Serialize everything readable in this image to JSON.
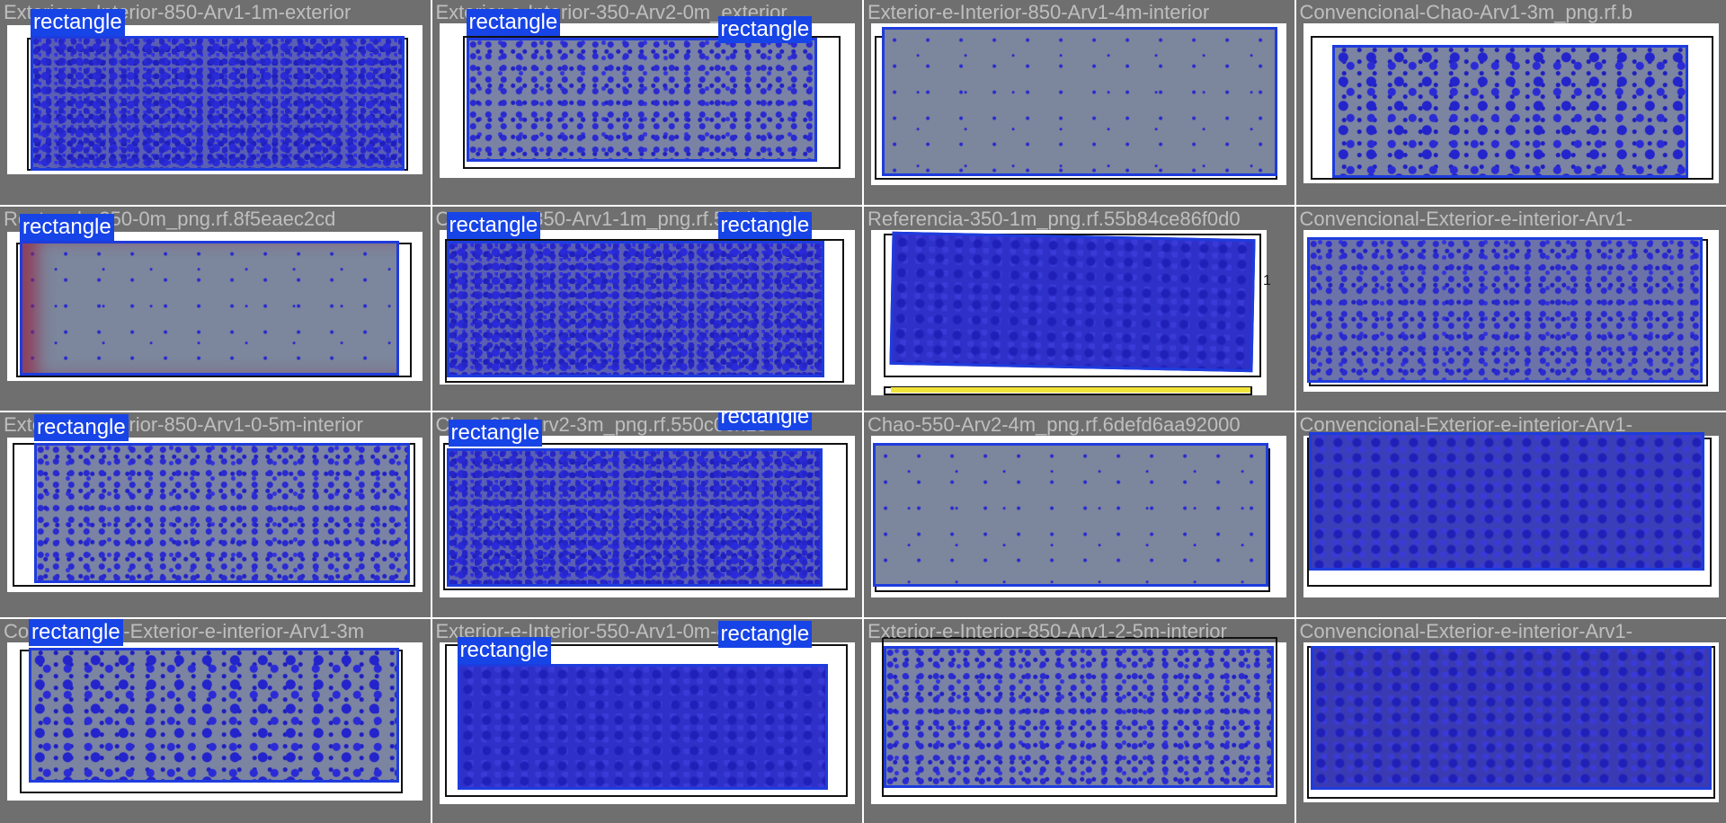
{
  "colors": {
    "tile_bg": "#6f6f6f",
    "box": "#1e3cdd",
    "label_bg": "#1744e6",
    "label_text": "#ffffff"
  },
  "tiles": [
    {
      "file": "Exterior-e-Interior-850-Arv1-1m-exterior",
      "labels": [
        "rectangle"
      ]
    },
    {
      "file": "Exterior-e-Interior-350-Arv2-0m_exterior",
      "labels": [
        "rectangle",
        "rectangle"
      ]
    },
    {
      "file": "Exterior-e-Interior-850-Arv1-4m-interior",
      "labels": []
    },
    {
      "file": "Convencional-Chao-Arv1-3m_png.rf.b",
      "labels": []
    },
    {
      "file": "Rectangle-350-0m_png.rf.8f5eaec2cd",
      "labels": [
        "rectangle"
      ]
    },
    {
      "file": "Composto-850-Arv1-1m_png.rf.53bb7045",
      "labels": [
        "rectangle",
        "rectangle"
      ]
    },
    {
      "file": "Referencia-350-1m_png.rf.55b84ce86f0d0",
      "labels": []
    },
    {
      "file": "Convencional-Exterior-e-interior-Arv1-",
      "labels": []
    },
    {
      "file": "Exterior-e-Interior-850-Arv1-0-5m-interior",
      "labels": [
        "rectangle"
      ]
    },
    {
      "file": "Chao-850-Arv2-3m_png.rf.550c0ch15",
      "labels": [
        "rectangle",
        "rectangle"
      ]
    },
    {
      "file": "Chao-550-Arv2-4m_png.rf.6defd6aa92000",
      "labels": []
    },
    {
      "file": "Convencional-Exterior-e-interior-Arv1-",
      "labels": []
    },
    {
      "file": "Convencional-Exterior-e-interior-Arv1-3m",
      "labels": [
        "rectangle"
      ]
    },
    {
      "file": "Exterior-e-Interior-550-Arv1-0m-exterior",
      "labels": [
        "rectangle",
        "rectangle"
      ]
    },
    {
      "file": "Exterior-e-Interior-850-Arv1-2-5m-interior",
      "labels": []
    },
    {
      "file": "Convencional-Exterior-e-interior-Arv1-",
      "labels": []
    }
  ],
  "marks": {
    "ruler_mark": "1"
  }
}
